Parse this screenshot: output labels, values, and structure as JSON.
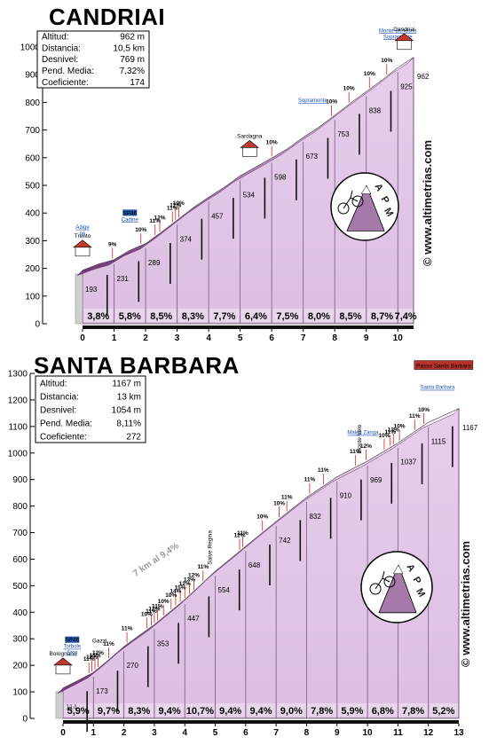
{
  "watermark": "© www.altimetrias.com",
  "logo": {
    "letters": [
      "A",
      "P",
      "M"
    ]
  },
  "chart_data": [
    {
      "type": "area",
      "title": "CANDRIAI",
      "info": [
        {
          "label": "Altitud:",
          "value": "962 m"
        },
        {
          "label": "Distancia:",
          "value": "10,5 km"
        },
        {
          "label": "Desnivel:",
          "value": "769 m"
        },
        {
          "label": "Pend. Media:",
          "value": "7,32%"
        },
        {
          "label": "Coeficiente:",
          "value": "174"
        }
      ],
      "ylim": [
        0,
        1000
      ],
      "yticks": [
        0,
        100,
        200,
        300,
        400,
        500,
        600,
        700,
        800,
        900,
        1000
      ],
      "xlim": [
        0,
        10.5
      ],
      "xticks": [
        0,
        1,
        2,
        3,
        4,
        5,
        6,
        7,
        8,
        9,
        10
      ],
      "profile": [
        [
          0,
          193
        ],
        [
          0.5,
          215
        ],
        [
          1,
          231
        ],
        [
          1.5,
          265
        ],
        [
          2,
          289
        ],
        [
          2.5,
          330
        ],
        [
          3,
          374
        ],
        [
          3.5,
          418
        ],
        [
          4,
          457
        ],
        [
          4.5,
          493
        ],
        [
          5,
          534
        ],
        [
          5.5,
          566
        ],
        [
          6,
          598
        ],
        [
          6.5,
          632
        ],
        [
          7,
          673
        ],
        [
          7.5,
          710
        ],
        [
          8,
          753
        ],
        [
          8.5,
          797
        ],
        [
          9,
          838
        ],
        [
          9.5,
          880
        ],
        [
          10,
          925
        ],
        [
          10.5,
          962
        ]
      ],
      "alt_labels": [
        [
          0,
          "193"
        ],
        [
          1,
          "231"
        ],
        [
          2,
          "289"
        ],
        [
          3,
          "374"
        ],
        [
          4,
          "457"
        ],
        [
          5,
          "534"
        ],
        [
          6,
          "598"
        ],
        [
          7,
          "673"
        ],
        [
          8,
          "753"
        ],
        [
          9,
          "838"
        ],
        [
          10,
          "925"
        ],
        [
          10.5,
          "962"
        ]
      ],
      "km_gradients": [
        "3,8%",
        "5,8%",
        "8,5%",
        "8,3%",
        "7,7%",
        "6,4%",
        "7,5%",
        "8,0%",
        "8,5%",
        "8,7%",
        "7,4%"
      ],
      "point_gradients": [
        {
          "x": 0.95,
          "label": "9%"
        },
        {
          "x": 1.85,
          "label": "10%"
        },
        {
          "x": 2.3,
          "label": "11%"
        },
        {
          "x": 2.45,
          "label": "12%"
        },
        {
          "x": 2.85,
          "label": "11%"
        },
        {
          "x": 2.95,
          "label": "12%"
        },
        {
          "x": 3.05,
          "label": "10%"
        },
        {
          "x": 6.0,
          "label": "10%"
        },
        {
          "x": 7.9,
          "label": "10%"
        },
        {
          "x": 8.45,
          "label": "10%"
        },
        {
          "x": 9.1,
          "label": "10%"
        },
        {
          "x": 9.65,
          "label": "10%"
        }
      ],
      "waypoints": [
        {
          "x": 0,
          "label": "Trento",
          "kind": "town"
        },
        {
          "x": 0,
          "label": "ne",
          "kind": "link"
        },
        {
          "x": 0,
          "label": "Adige",
          "kind": "link"
        },
        {
          "x": 1.5,
          "label": "Cadine",
          "kind": "link"
        },
        {
          "x": 1.5,
          "label": "SP46",
          "kind": "road"
        },
        {
          "x": 5.3,
          "label": "Sardagna",
          "kind": "town"
        },
        {
          "x": 7.3,
          "label": "Sopramonte",
          "kind": "link"
        },
        {
          "x": 10.0,
          "label": "Sopramonte",
          "kind": "link"
        },
        {
          "x": 10.0,
          "label": "Monte Bondone",
          "kind": "link"
        },
        {
          "x": 10.2,
          "label": "Candriai",
          "kind": "town"
        }
      ]
    },
    {
      "type": "area",
      "title": "SANTA BARBARA",
      "info": [
        {
          "label": "Altitud:",
          "value": "1167 m"
        },
        {
          "label": "Distancia:",
          "value": "13 km"
        },
        {
          "label": "Desnivel:",
          "value": "1054 m"
        },
        {
          "label": "Pend. Media:",
          "value": "8,11%"
        },
        {
          "label": "Coeficiente:",
          "value": "272"
        }
      ],
      "note": "7 km al 9,4%",
      "ylim": [
        0,
        1300
      ],
      "yticks": [
        0,
        100,
        200,
        300,
        400,
        500,
        600,
        700,
        800,
        900,
        1000,
        1100,
        1200,
        1300
      ],
      "xlim": [
        0,
        13
      ],
      "xticks": [
        0,
        1,
        2,
        3,
        4,
        5,
        6,
        7,
        8,
        9,
        10,
        11,
        12,
        13
      ],
      "profile": [
        [
          0,
          114
        ],
        [
          0.5,
          143
        ],
        [
          1,
          173
        ],
        [
          1.5,
          220
        ],
        [
          2,
          270
        ],
        [
          2.5,
          312
        ],
        [
          3,
          353
        ],
        [
          3.5,
          400
        ],
        [
          4,
          447
        ],
        [
          4.5,
          500
        ],
        [
          5,
          554
        ],
        [
          5.5,
          601
        ],
        [
          6,
          648
        ],
        [
          6.5,
          695
        ],
        [
          7,
          742
        ],
        [
          7.5,
          787
        ],
        [
          8,
          832
        ],
        [
          8.5,
          871
        ],
        [
          9,
          910
        ],
        [
          9.5,
          940
        ],
        [
          10,
          969
        ],
        [
          10.5,
          1003
        ],
        [
          11,
          1037
        ],
        [
          11.5,
          1076
        ],
        [
          12,
          1115
        ],
        [
          12.5,
          1141
        ],
        [
          13,
          1167
        ]
      ],
      "alt_labels": [
        [
          0,
          "114"
        ],
        [
          1,
          "173"
        ],
        [
          2,
          "270"
        ],
        [
          3,
          "353"
        ],
        [
          4,
          "447"
        ],
        [
          5,
          "554"
        ],
        [
          6,
          "648"
        ],
        [
          7,
          "742"
        ],
        [
          8,
          "832"
        ],
        [
          9,
          "910"
        ],
        [
          10,
          "969"
        ],
        [
          11,
          "1037"
        ],
        [
          12,
          "1115"
        ],
        [
          13,
          "1167"
        ]
      ],
      "km_gradients": [
        "5,9%",
        "9,7%",
        "8,3%",
        "9,4%",
        "10,7%",
        "9,4%",
        "9,4%",
        "9,0%",
        "7,8%",
        "5,9%",
        "6,8%",
        "7,8%",
        "5,2%"
      ],
      "point_gradients": [
        {
          "x": 0.85,
          "label": "11%"
        },
        {
          "x": 0.95,
          "label": "12%"
        },
        {
          "x": 1.05,
          "label": "15%"
        },
        {
          "x": 1.15,
          "label": "12%"
        },
        {
          "x": 1.5,
          "label": "11%"
        },
        {
          "x": 2.1,
          "label": "11%"
        },
        {
          "x": 2.75,
          "label": "10%"
        },
        {
          "x": 2.9,
          "label": "11%"
        },
        {
          "x": 3.0,
          "label": "12%"
        },
        {
          "x": 3.1,
          "label": "11%"
        },
        {
          "x": 3.3,
          "label": "10%"
        },
        {
          "x": 3.55,
          "label": "10%"
        },
        {
          "x": 3.7,
          "label": "14%"
        },
        {
          "x": 3.85,
          "label": "15%"
        },
        {
          "x": 4.0,
          "label": "12%"
        },
        {
          "x": 4.15,
          "label": "13%"
        },
        {
          "x": 4.3,
          "label": "12%"
        },
        {
          "x": 4.6,
          "label": "11%"
        },
        {
          "x": 5.8,
          "label": "12%"
        },
        {
          "x": 5.9,
          "label": "11%"
        },
        {
          "x": 6.55,
          "label": "10%"
        },
        {
          "x": 7.1,
          "label": "10%"
        },
        {
          "x": 7.35,
          "label": "11%"
        },
        {
          "x": 8.1,
          "label": "11%"
        },
        {
          "x": 8.55,
          "label": "11%"
        },
        {
          "x": 9.6,
          "label": "11%"
        },
        {
          "x": 9.95,
          "label": "12%"
        },
        {
          "x": 10.55,
          "label": "10%"
        },
        {
          "x": 10.75,
          "label": "11%"
        },
        {
          "x": 10.85,
          "label": "13%"
        },
        {
          "x": 11.05,
          "label": "10%"
        },
        {
          "x": 11.55,
          "label": "11%"
        },
        {
          "x": 11.85,
          "label": "10%"
        }
      ],
      "waypoints": [
        {
          "x": 0,
          "label": "Bolognano",
          "kind": "town"
        },
        {
          "x": 0.3,
          "label": "Arco",
          "kind": "link"
        },
        {
          "x": 0.3,
          "label": "Torbole",
          "kind": "link"
        },
        {
          "x": 0.3,
          "label": "SP46",
          "kind": "road"
        },
        {
          "x": 1.2,
          "label": "Gazzi",
          "kind": "text"
        },
        {
          "x": 4.8,
          "label": "Salve Regina",
          "kind": "vtext"
        },
        {
          "x": 9.7,
          "label": "Monte Velo",
          "kind": "vtext"
        },
        {
          "x": 9.85,
          "label": "Malga Zanga",
          "kind": "link"
        },
        {
          "x": 12.5,
          "label": "Passo Santa Barbara",
          "kind": "sign"
        },
        {
          "x": 12.3,
          "label": "Santa Barbara",
          "kind": "link"
        }
      ]
    }
  ]
}
